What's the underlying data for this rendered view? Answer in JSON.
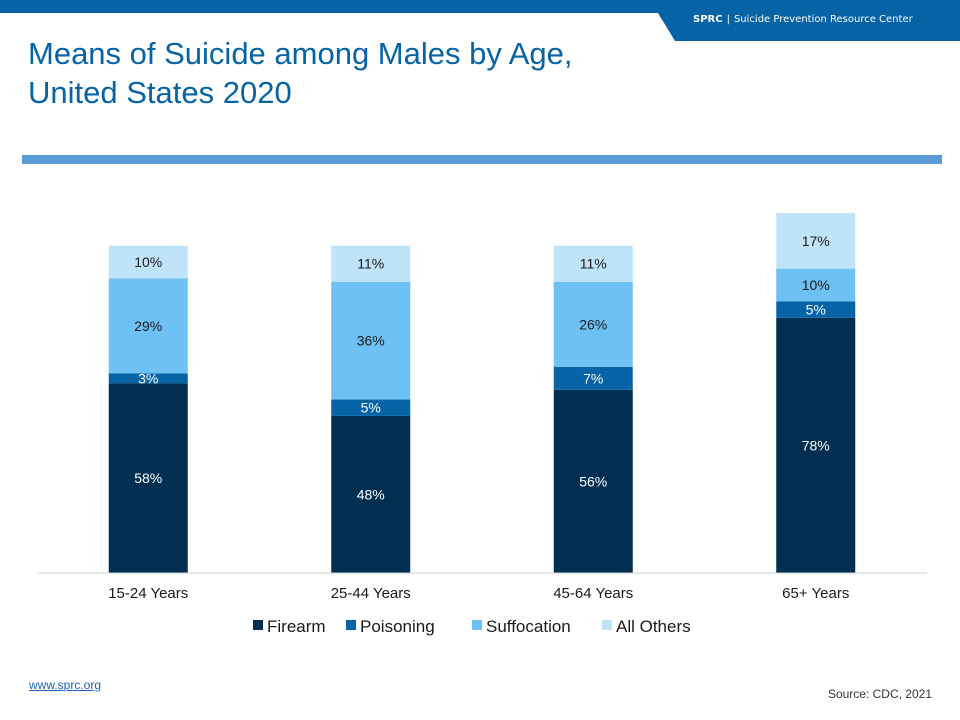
{
  "header": {
    "brand_abbr": "SPRC",
    "brand_sep": "|",
    "brand_name": "Suicide Prevention Resource Center",
    "brand_color": "#0563A6"
  },
  "title_line1": "Means of Suicide among Males by Age,",
  "title_line2": "United States 2020",
  "footer": {
    "link": "www.sprc.org",
    "source": "Source: CDC, 2021"
  },
  "chart_data": {
    "type": "bar",
    "stacked": true,
    "title": "Means of Suicide among Males by Age, United States 2020",
    "categories": [
      "15-24 Years",
      "25-44 Years",
      "45-64 Years",
      "65+ Years"
    ],
    "series": [
      {
        "name": "Firearm",
        "values": [
          58,
          48,
          56,
          78
        ],
        "color": "#002F52"
      },
      {
        "name": "Poisoning",
        "values": [
          3,
          5,
          7,
          5
        ],
        "color": "#0563A6"
      },
      {
        "name": "Suffocation",
        "values": [
          29,
          36,
          26,
          10
        ],
        "color": "#6EC1F5"
      },
      {
        "name": "All Others",
        "values": [
          10,
          11,
          11,
          17
        ],
        "color": "#BFE3F8"
      }
    ],
    "data_labels": [
      [
        "58%",
        "48%",
        "56%",
        "78%"
      ],
      [
        "3%",
        "5%",
        "7%",
        "5%"
      ],
      [
        "29%",
        "36%",
        "26%",
        "10%"
      ],
      [
        "10%",
        "11%",
        "11%",
        "17%"
      ]
    ],
    "unit": "%",
    "ylim": [
      0,
      110
    ],
    "legend_position": "bottom",
    "grid": false
  }
}
